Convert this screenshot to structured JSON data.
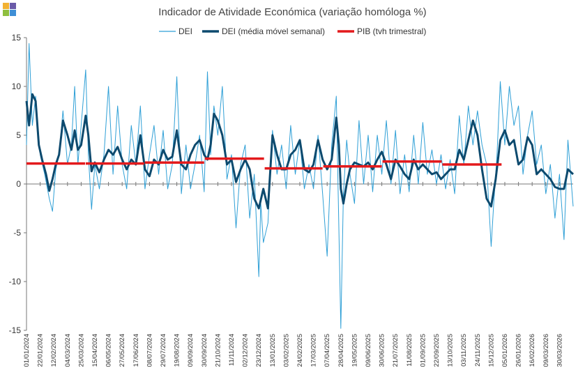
{
  "logo": {
    "colors": [
      "#f2b233",
      "#6a5aa8",
      "#8fbf3f",
      "#3f8fd6"
    ]
  },
  "chart_data": {
    "type": "line",
    "title": "Indicador de Atividade Económica (variação homóloga %)",
    "xlabel": "",
    "ylabel": "",
    "ylim": [
      -15,
      15
    ],
    "yticks": [
      15,
      10,
      5,
      0,
      -5,
      -10,
      -15
    ],
    "x_start": "2024-01-01",
    "x_end": "2026-04-20",
    "xticks": [
      "01/01/2024",
      "22/01/2024",
      "12/02/2024",
      "04/03/2024",
      "25/03/2024",
      "15/04/2024",
      "06/05/2024",
      "27/05/2024",
      "17/06/2024",
      "08/07/2024",
      "29/07/2024",
      "19/08/2024",
      "09/09/2024",
      "30/09/2024",
      "21/10/2024",
      "11/11/2024",
      "02/12/2024",
      "23/12/2024",
      "13/01/2025",
      "03/02/2025",
      "24/02/2025",
      "17/03/2025",
      "07/04/2025",
      "28/04/2025",
      "19/05/2025",
      "09/06/2025",
      "30/06/2025",
      "21/07/2025",
      "11/08/2025",
      "01/09/2025",
      "22/09/2025",
      "13/10/2025",
      "03/11/2025",
      "24/11/2025",
      "15/12/2025",
      "05/01/2026",
      "26/01/2026",
      "16/02/2026",
      "09/03/2026",
      "30/03/2026"
    ],
    "grid": false,
    "legend_position": "top",
    "series": [
      {
        "name": "DEI",
        "color": "#2e9fd6",
        "style": "thin",
        "points": [
          [
            "2024-01-01",
            4
          ],
          [
            "2024-01-05",
            14.4
          ],
          [
            "2024-01-10",
            6
          ],
          [
            "2024-01-15",
            9
          ],
          [
            "2024-01-22",
            3
          ],
          [
            "2024-01-29",
            1
          ],
          [
            "2024-02-05",
            -1.5
          ],
          [
            "2024-02-10",
            -2.8
          ],
          [
            "2024-02-15",
            1.5
          ],
          [
            "2024-02-20",
            3
          ],
          [
            "2024-02-26",
            7.5
          ],
          [
            "2024-03-04",
            2
          ],
          [
            "2024-03-10",
            4
          ],
          [
            "2024-03-15",
            10
          ],
          [
            "2024-03-20",
            2
          ],
          [
            "2024-03-25",
            6
          ],
          [
            "2024-04-01",
            11.7
          ],
          [
            "2024-04-05",
            3
          ],
          [
            "2024-04-10",
            -2.6
          ],
          [
            "2024-04-15",
            2
          ],
          [
            "2024-04-22",
            -0.5
          ],
          [
            "2024-04-29",
            3
          ],
          [
            "2024-05-06",
            10
          ],
          [
            "2024-05-13",
            1
          ],
          [
            "2024-05-20",
            8
          ],
          [
            "2024-05-27",
            2
          ],
          [
            "2024-06-03",
            -0.5
          ],
          [
            "2024-06-10",
            6
          ],
          [
            "2024-06-17",
            2
          ],
          [
            "2024-06-24",
            8
          ],
          [
            "2024-07-01",
            -0.5
          ],
          [
            "2024-07-08",
            3
          ],
          [
            "2024-07-15",
            6
          ],
          [
            "2024-07-22",
            1
          ],
          [
            "2024-07-29",
            5.5
          ],
          [
            "2024-08-05",
            -0.5
          ],
          [
            "2024-08-12",
            2
          ],
          [
            "2024-08-19",
            11
          ],
          [
            "2024-08-26",
            -1
          ],
          [
            "2024-09-02",
            4
          ],
          [
            "2024-09-09",
            -0.5
          ],
          [
            "2024-09-16",
            2
          ],
          [
            "2024-09-23",
            5
          ],
          [
            "2024-09-30",
            -0.8
          ],
          [
            "2024-10-05",
            11.5
          ],
          [
            "2024-10-10",
            3
          ],
          [
            "2024-10-15",
            8
          ],
          [
            "2024-10-21",
            5
          ],
          [
            "2024-10-28",
            10
          ],
          [
            "2024-11-04",
            0.5
          ],
          [
            "2024-11-11",
            3
          ],
          [
            "2024-11-18",
            -4.5
          ],
          [
            "2024-11-25",
            2
          ],
          [
            "2024-12-02",
            4
          ],
          [
            "2024-12-09",
            -3.5
          ],
          [
            "2024-12-16",
            1
          ],
          [
            "2024-12-23",
            -9.5
          ],
          [
            "2024-12-26",
            -2
          ],
          [
            "2024-12-30",
            -6
          ],
          [
            "2025-01-06",
            -4
          ],
          [
            "2025-01-13",
            5.5
          ],
          [
            "2025-01-20",
            1
          ],
          [
            "2025-01-27",
            4
          ],
          [
            "2025-02-03",
            -0.5
          ],
          [
            "2025-02-10",
            6
          ],
          [
            "2025-02-17",
            1
          ],
          [
            "2025-02-24",
            4.5
          ],
          [
            "2025-03-03",
            -0.5
          ],
          [
            "2025-03-10",
            2
          ],
          [
            "2025-03-17",
            -0.5
          ],
          [
            "2025-03-24",
            5
          ],
          [
            "2025-03-31",
            -1
          ],
          [
            "2025-04-07",
            -7.4
          ],
          [
            "2025-04-14",
            4
          ],
          [
            "2025-04-21",
            9
          ],
          [
            "2025-04-28",
            -14.8
          ],
          [
            "2025-05-02",
            -1
          ],
          [
            "2025-05-07",
            4.5
          ],
          [
            "2025-05-12",
            1
          ],
          [
            "2025-05-19",
            -2
          ],
          [
            "2025-05-26",
            6.5
          ],
          [
            "2025-06-02",
            0
          ],
          [
            "2025-06-09",
            5
          ],
          [
            "2025-06-16",
            -0.8
          ],
          [
            "2025-06-23",
            5
          ],
          [
            "2025-06-30",
            1
          ],
          [
            "2025-07-07",
            6.5
          ],
          [
            "2025-07-14",
            0
          ],
          [
            "2025-07-21",
            5.5
          ],
          [
            "2025-07-28",
            -1
          ],
          [
            "2025-08-04",
            3
          ],
          [
            "2025-08-11",
            -0.8
          ],
          [
            "2025-08-18",
            5
          ],
          [
            "2025-08-25",
            0
          ],
          [
            "2025-09-01",
            6.3
          ],
          [
            "2025-09-08",
            1
          ],
          [
            "2025-09-15",
            3.5
          ],
          [
            "2025-09-22",
            0
          ],
          [
            "2025-09-29",
            3
          ],
          [
            "2025-10-06",
            -0.5
          ],
          [
            "2025-10-13",
            2.5
          ],
          [
            "2025-10-20",
            -1
          ],
          [
            "2025-10-27",
            7
          ],
          [
            "2025-11-03",
            2
          ],
          [
            "2025-11-10",
            8
          ],
          [
            "2025-11-17",
            4
          ],
          [
            "2025-11-24",
            7.5
          ],
          [
            "2025-12-01",
            4
          ],
          [
            "2025-12-08",
            2
          ],
          [
            "2025-12-15",
            -6.4
          ],
          [
            "2025-12-19",
            -2
          ],
          [
            "2025-12-24",
            3
          ],
          [
            "2025-12-29",
            10.5
          ],
          [
            "2026-01-05",
            4
          ],
          [
            "2026-01-12",
            10
          ],
          [
            "2026-01-19",
            6
          ],
          [
            "2026-01-26",
            8
          ],
          [
            "2026-02-02",
            1
          ],
          [
            "2026-02-09",
            5
          ],
          [
            "2026-02-16",
            7.5
          ],
          [
            "2026-02-23",
            2
          ],
          [
            "2026-03-02",
            4
          ],
          [
            "2026-03-09",
            -1
          ],
          [
            "2026-03-16",
            2
          ],
          [
            "2026-03-23",
            -3.5
          ],
          [
            "2026-03-30",
            1
          ],
          [
            "2026-04-06",
            -5.7
          ],
          [
            "2026-04-12",
            4.5
          ],
          [
            "2026-04-20",
            -2.3
          ]
        ]
      },
      {
        "name": "DEI (média móvel semanal)",
        "color": "#0d4a6e",
        "style": "thick",
        "points": [
          [
            "2024-01-01",
            8.5
          ],
          [
            "2024-01-05",
            6
          ],
          [
            "2024-01-10",
            9.2
          ],
          [
            "2024-01-15",
            8.5
          ],
          [
            "2024-01-20",
            4
          ],
          [
            "2024-01-25",
            2.5
          ],
          [
            "2024-01-31",
            1
          ],
          [
            "2024-02-05",
            -0.7
          ],
          [
            "2024-02-10",
            0.5
          ],
          [
            "2024-02-15",
            2
          ],
          [
            "2024-02-20",
            3
          ],
          [
            "2024-02-26",
            6.5
          ],
          [
            "2024-03-04",
            5
          ],
          [
            "2024-03-10",
            3.5
          ],
          [
            "2024-03-15",
            5.5
          ],
          [
            "2024-03-20",
            3.5
          ],
          [
            "2024-03-25",
            4
          ],
          [
            "2024-04-01",
            7
          ],
          [
            "2024-04-05",
            5
          ],
          [
            "2024-04-10",
            1.3
          ],
          [
            "2024-04-15",
            2.2
          ],
          [
            "2024-04-22",
            1.2
          ],
          [
            "2024-04-29",
            2.5
          ],
          [
            "2024-05-06",
            3.5
          ],
          [
            "2024-05-13",
            3
          ],
          [
            "2024-05-20",
            3.8
          ],
          [
            "2024-05-27",
            2.5
          ],
          [
            "2024-06-03",
            1.5
          ],
          [
            "2024-06-10",
            2.5
          ],
          [
            "2024-06-17",
            2
          ],
          [
            "2024-06-24",
            5
          ],
          [
            "2024-07-01",
            1.5
          ],
          [
            "2024-07-08",
            0.8
          ],
          [
            "2024-07-15",
            2.5
          ],
          [
            "2024-07-22",
            2
          ],
          [
            "2024-07-29",
            3.5
          ],
          [
            "2024-08-05",
            2.5
          ],
          [
            "2024-08-12",
            2.8
          ],
          [
            "2024-08-19",
            5.5
          ],
          [
            "2024-08-26",
            2
          ],
          [
            "2024-09-02",
            1.5
          ],
          [
            "2024-09-09",
            3
          ],
          [
            "2024-09-16",
            4
          ],
          [
            "2024-09-23",
            4.5
          ],
          [
            "2024-09-30",
            3
          ],
          [
            "2024-10-05",
            2.5
          ],
          [
            "2024-10-10",
            4
          ],
          [
            "2024-10-15",
            7.2
          ],
          [
            "2024-10-21",
            6.5
          ],
          [
            "2024-10-28",
            5
          ],
          [
            "2024-11-04",
            2
          ],
          [
            "2024-11-11",
            2.5
          ],
          [
            "2024-11-18",
            0.2
          ],
          [
            "2024-11-25",
            1.5
          ],
          [
            "2024-12-02",
            2.5
          ],
          [
            "2024-12-09",
            1.5
          ],
          [
            "2024-12-16",
            -1.5
          ],
          [
            "2024-12-23",
            -2.5
          ],
          [
            "2024-12-30",
            -0.5
          ],
          [
            "2025-01-06",
            -2.5
          ],
          [
            "2025-01-13",
            5
          ],
          [
            "2025-01-20",
            3
          ],
          [
            "2025-01-27",
            1.5
          ],
          [
            "2025-02-03",
            1.5
          ],
          [
            "2025-02-10",
            3
          ],
          [
            "2025-02-17",
            3.5
          ],
          [
            "2025-02-24",
            4.5
          ],
          [
            "2025-03-03",
            1.5
          ],
          [
            "2025-03-10",
            1.2
          ],
          [
            "2025-03-17",
            2
          ],
          [
            "2025-03-24",
            4.5
          ],
          [
            "2025-03-31",
            2.5
          ],
          [
            "2025-04-07",
            1.5
          ],
          [
            "2025-04-14",
            2.5
          ],
          [
            "2025-04-21",
            6.8
          ],
          [
            "2025-04-25",
            4
          ],
          [
            "2025-04-28",
            -0.5
          ],
          [
            "2025-05-02",
            -2
          ],
          [
            "2025-05-07",
            0
          ],
          [
            "2025-05-12",
            1.5
          ],
          [
            "2025-05-19",
            2.2
          ],
          [
            "2025-05-26",
            2
          ],
          [
            "2025-06-02",
            1.8
          ],
          [
            "2025-06-09",
            2.2
          ],
          [
            "2025-06-16",
            1.5
          ],
          [
            "2025-06-23",
            2.5
          ],
          [
            "2025-06-30",
            3.3
          ],
          [
            "2025-07-07",
            2
          ],
          [
            "2025-07-14",
            0.5
          ],
          [
            "2025-07-21",
            2.5
          ],
          [
            "2025-07-28",
            1.8
          ],
          [
            "2025-08-04",
            1
          ],
          [
            "2025-08-11",
            0.5
          ],
          [
            "2025-08-18",
            2.5
          ],
          [
            "2025-08-25",
            1.5
          ],
          [
            "2025-09-01",
            2
          ],
          [
            "2025-09-08",
            1.5
          ],
          [
            "2025-09-15",
            1
          ],
          [
            "2025-09-22",
            1.2
          ],
          [
            "2025-09-29",
            0.5
          ],
          [
            "2025-10-06",
            1
          ],
          [
            "2025-10-13",
            1.5
          ],
          [
            "2025-10-20",
            1.5
          ],
          [
            "2025-10-27",
            3.5
          ],
          [
            "2025-11-03",
            2.5
          ],
          [
            "2025-11-10",
            4.5
          ],
          [
            "2025-11-17",
            6.5
          ],
          [
            "2025-11-24",
            5
          ],
          [
            "2025-12-01",
            1.5
          ],
          [
            "2025-12-08",
            -1.5
          ],
          [
            "2025-12-15",
            -2.3
          ],
          [
            "2025-12-22",
            0.5
          ],
          [
            "2025-12-29",
            4.5
          ],
          [
            "2026-01-05",
            5.5
          ],
          [
            "2026-01-12",
            4
          ],
          [
            "2026-01-19",
            4.5
          ],
          [
            "2026-01-26",
            2
          ],
          [
            "2026-02-02",
            2.5
          ],
          [
            "2026-02-09",
            4.8
          ],
          [
            "2026-02-16",
            4
          ],
          [
            "2026-02-23",
            1
          ],
          [
            "2026-03-02",
            1.5
          ],
          [
            "2026-03-09",
            1
          ],
          [
            "2026-03-16",
            0.5
          ],
          [
            "2026-03-23",
            -0.3
          ],
          [
            "2026-03-30",
            -0.5
          ],
          [
            "2026-04-06",
            -0.5
          ],
          [
            "2026-04-12",
            1.5
          ],
          [
            "2026-04-20",
            1
          ]
        ]
      },
      {
        "name": "PIB (tvh trimestral)",
        "color": "#e31a1c",
        "style": "step",
        "segments": [
          [
            "2024-01-01",
            "2024-03-31",
            2.1
          ],
          [
            "2024-04-01",
            "2024-06-30",
            2.1
          ],
          [
            "2024-07-01",
            "2024-09-30",
            2.2
          ],
          [
            "2024-10-01",
            "2024-12-31",
            2.6
          ],
          [
            "2025-01-01",
            "2025-03-31",
            1.6
          ],
          [
            "2025-04-01",
            "2025-06-30",
            1.8
          ],
          [
            "2025-07-01",
            "2025-09-30",
            2.3
          ],
          [
            "2025-10-01",
            "2025-12-31",
            2.0
          ]
        ]
      }
    ]
  }
}
